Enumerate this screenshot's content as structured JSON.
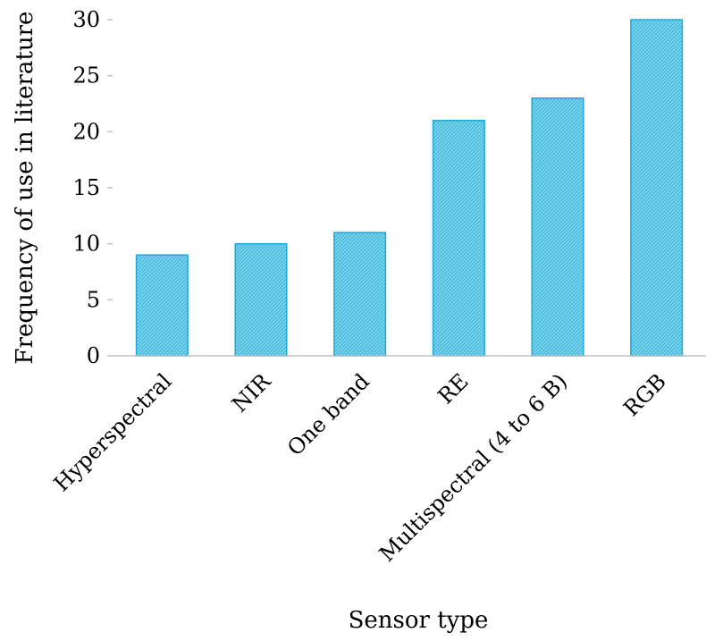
{
  "chart_data": {
    "type": "bar",
    "categories": [
      "Hyperspectral",
      "NIR",
      "One band",
      "RE",
      "Multispectral (4 to 6 B)",
      "RGB"
    ],
    "values": [
      9,
      10,
      11,
      21,
      23,
      30
    ],
    "xlabel": "Sensor type",
    "ylabel": "Frequency of use in literature",
    "ylim": [
      0,
      30
    ],
    "yticks": [
      0,
      5,
      10,
      15,
      20,
      25,
      30
    ],
    "grid": false,
    "legend": "none",
    "colors": {
      "bar_fill": "#7fd3ea",
      "bar_hatch": "#33b6dc",
      "bar_stroke": "#1fa8d8",
      "axis": "#bfbfbf"
    }
  }
}
